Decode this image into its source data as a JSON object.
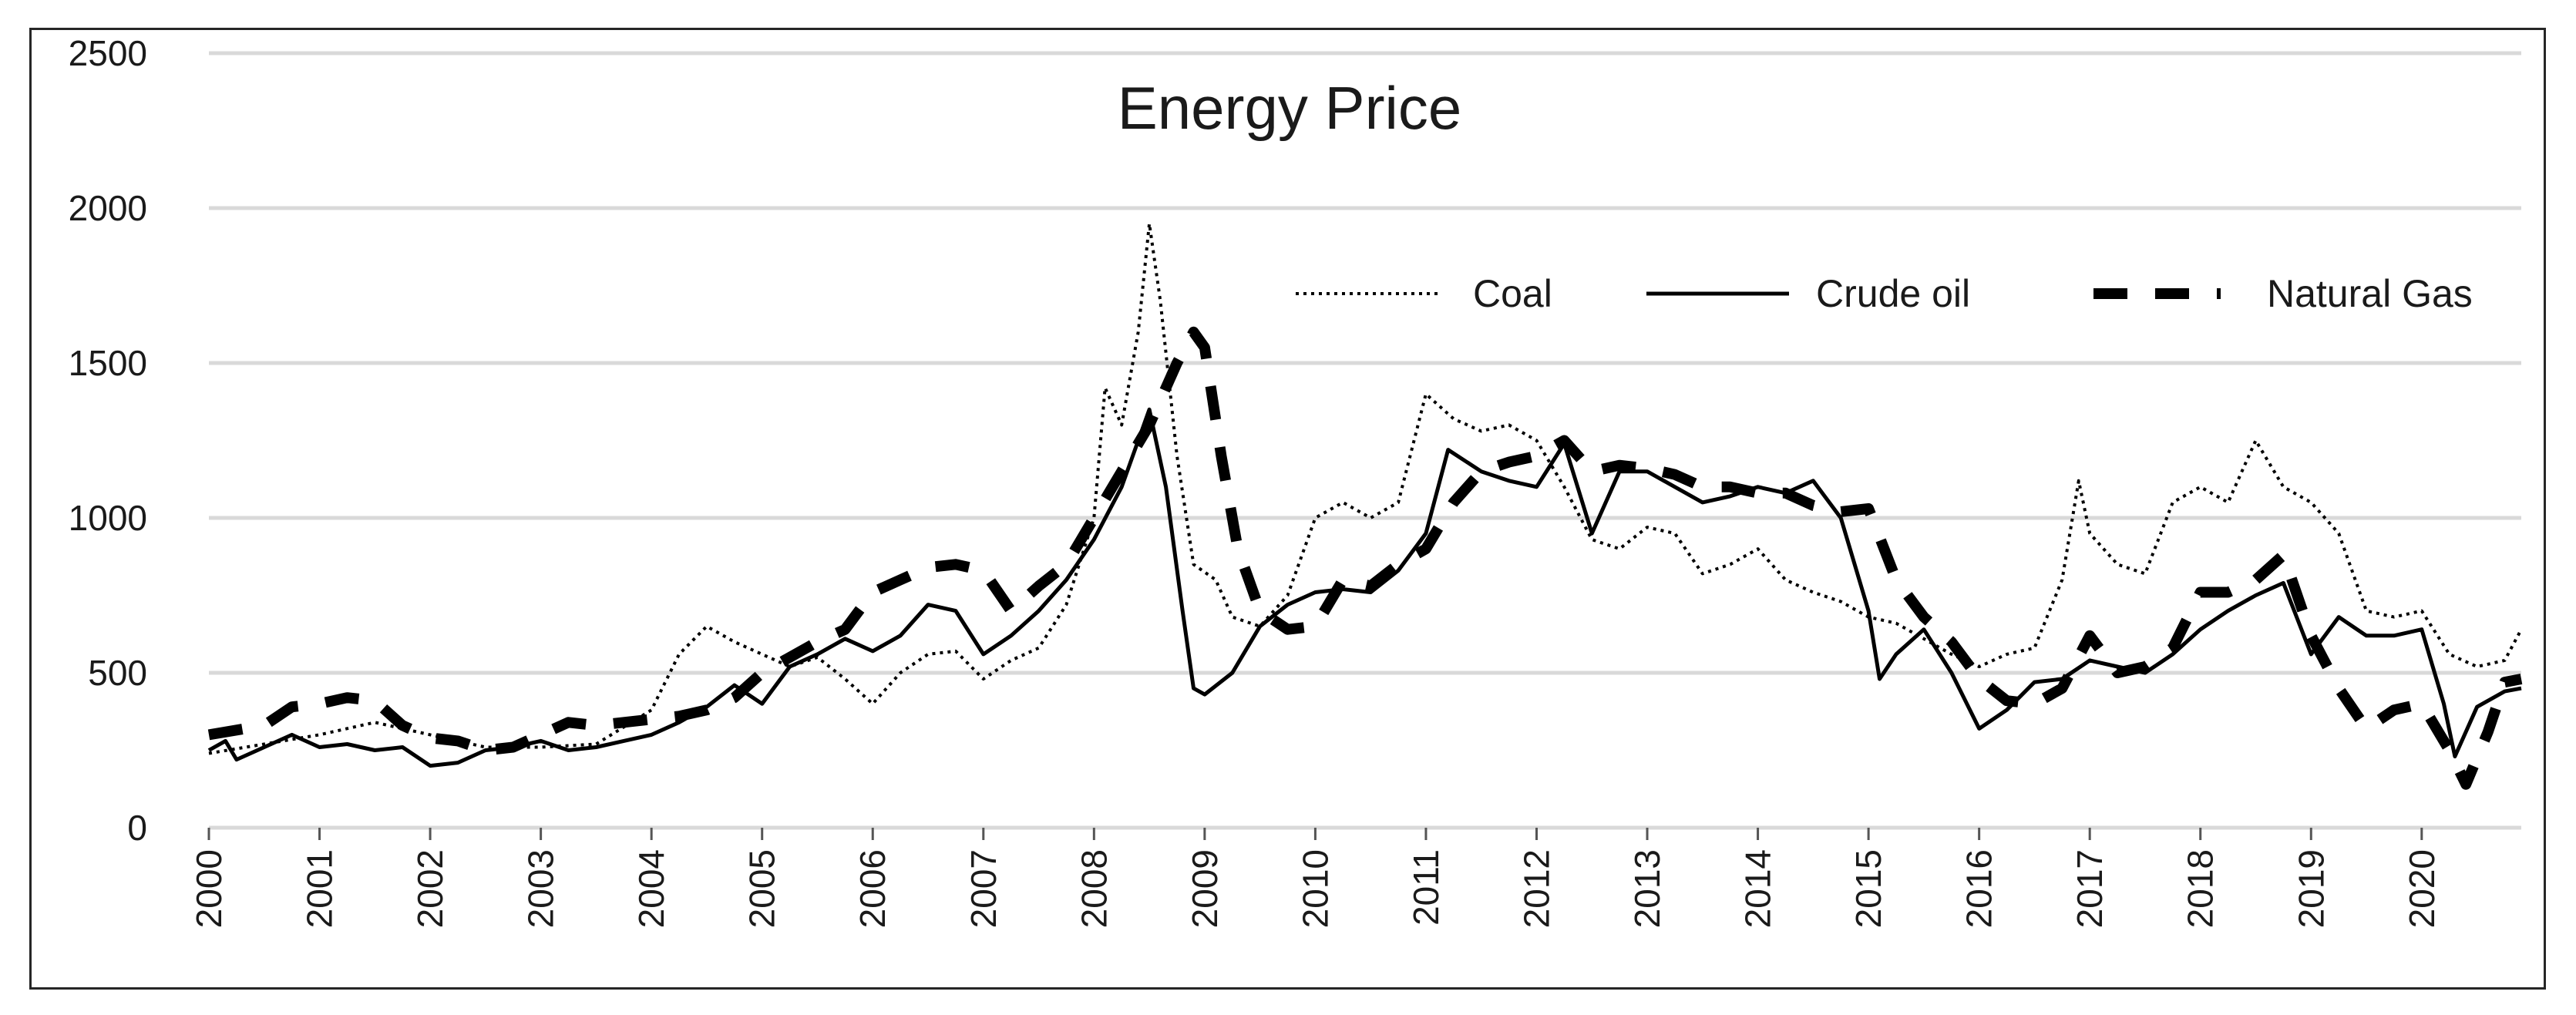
{
  "chart_data": {
    "type": "line",
    "title": "Energy Price",
    "xlabel": "",
    "ylabel": "",
    "ylim": [
      0,
      2500
    ],
    "yticks": [
      0,
      500,
      1000,
      1500,
      2000,
      2500
    ],
    "xlim": [
      2000,
      2020.9
    ],
    "xticks": [
      "2000",
      "2001",
      "2002",
      "2003",
      "2004",
      "2005",
      "2006",
      "2007",
      "2008",
      "2009",
      "2010",
      "2011",
      "2012",
      "2013",
      "2014",
      "2015",
      "2016",
      "2017",
      "2018",
      "2019",
      "2020"
    ],
    "grid": true,
    "legend_position": "top-right",
    "colors": {
      "line": "#000000",
      "grid": "#d9d9d9",
      "text": "#1a1a1a"
    },
    "series": [
      {
        "name": "Coal",
        "style": "dotted",
        "points": [
          [
            2000,
            240
          ],
          [
            2000.5,
            270
          ],
          [
            2001,
            300
          ],
          [
            2001.5,
            340
          ],
          [
            2002,
            300
          ],
          [
            2002.5,
            260
          ],
          [
            2003,
            260
          ],
          [
            2003.5,
            270
          ],
          [
            2004,
            380
          ],
          [
            2004.25,
            560
          ],
          [
            2004.5,
            650
          ],
          [
            2004.75,
            600
          ],
          [
            2005,
            560
          ],
          [
            2005.25,
            520
          ],
          [
            2005.5,
            550
          ],
          [
            2005.75,
            480
          ],
          [
            2006,
            400
          ],
          [
            2006.25,
            500
          ],
          [
            2006.5,
            560
          ],
          [
            2006.75,
            570
          ],
          [
            2007,
            480
          ],
          [
            2007.25,
            540
          ],
          [
            2007.5,
            580
          ],
          [
            2007.75,
            720
          ],
          [
            2008,
            1000
          ],
          [
            2008.1,
            1420
          ],
          [
            2008.25,
            1300
          ],
          [
            2008.4,
            1600
          ],
          [
            2008.5,
            1950
          ],
          [
            2008.6,
            1700
          ],
          [
            2008.75,
            1200
          ],
          [
            2008.9,
            850
          ],
          [
            2009.1,
            800
          ],
          [
            2009.25,
            680
          ],
          [
            2009.5,
            650
          ],
          [
            2009.75,
            750
          ],
          [
            2010,
            1000
          ],
          [
            2010.25,
            1050
          ],
          [
            2010.5,
            1000
          ],
          [
            2010.75,
            1050
          ],
          [
            2011,
            1400
          ],
          [
            2011.25,
            1320
          ],
          [
            2011.5,
            1280
          ],
          [
            2011.75,
            1300
          ],
          [
            2012,
            1250
          ],
          [
            2012.25,
            1100
          ],
          [
            2012.5,
            930
          ],
          [
            2012.75,
            900
          ],
          [
            2013,
            970
          ],
          [
            2013.25,
            950
          ],
          [
            2013.5,
            820
          ],
          [
            2013.75,
            850
          ],
          [
            2014,
            900
          ],
          [
            2014.25,
            800
          ],
          [
            2014.5,
            760
          ],
          [
            2014.75,
            730
          ],
          [
            2015,
            680
          ],
          [
            2015.25,
            660
          ],
          [
            2015.5,
            610
          ],
          [
            2015.75,
            560
          ],
          [
            2016,
            520
          ],
          [
            2016.25,
            560
          ],
          [
            2016.5,
            580
          ],
          [
            2016.75,
            800
          ],
          [
            2016.9,
            1120
          ],
          [
            2017,
            950
          ],
          [
            2017.25,
            850
          ],
          [
            2017.5,
            820
          ],
          [
            2017.75,
            1050
          ],
          [
            2018,
            1100
          ],
          [
            2018.25,
            1050
          ],
          [
            2018.5,
            1250
          ],
          [
            2018.75,
            1100
          ],
          [
            2019,
            1050
          ],
          [
            2019.25,
            950
          ],
          [
            2019.5,
            700
          ],
          [
            2019.75,
            680
          ],
          [
            2020,
            700
          ],
          [
            2020.25,
            560
          ],
          [
            2020.5,
            520
          ],
          [
            2020.75,
            540
          ],
          [
            2020.9,
            640
          ]
        ]
      },
      {
        "name": "Crude oil",
        "style": "solid",
        "points": [
          [
            2000,
            250
          ],
          [
            2000.15,
            280
          ],
          [
            2000.25,
            220
          ],
          [
            2000.5,
            260
          ],
          [
            2000.75,
            300
          ],
          [
            2001,
            260
          ],
          [
            2001.25,
            270
          ],
          [
            2001.5,
            250
          ],
          [
            2001.75,
            260
          ],
          [
            2002,
            200
          ],
          [
            2002.25,
            210
          ],
          [
            2002.5,
            250
          ],
          [
            2002.75,
            260
          ],
          [
            2003,
            280
          ],
          [
            2003.25,
            250
          ],
          [
            2003.5,
            260
          ],
          [
            2003.75,
            280
          ],
          [
            2004,
            300
          ],
          [
            2004.25,
            340
          ],
          [
            2004.5,
            390
          ],
          [
            2004.75,
            460
          ],
          [
            2005,
            400
          ],
          [
            2005.25,
            520
          ],
          [
            2005.5,
            560
          ],
          [
            2005.75,
            610
          ],
          [
            2006,
            570
          ],
          [
            2006.25,
            620
          ],
          [
            2006.5,
            720
          ],
          [
            2006.75,
            700
          ],
          [
            2007,
            560
          ],
          [
            2007.25,
            620
          ],
          [
            2007.5,
            700
          ],
          [
            2007.75,
            800
          ],
          [
            2008,
            930
          ],
          [
            2008.25,
            1100
          ],
          [
            2008.5,
            1350
          ],
          [
            2008.65,
            1100
          ],
          [
            2008.8,
            700
          ],
          [
            2008.9,
            450
          ],
          [
            2009,
            430
          ],
          [
            2009.25,
            500
          ],
          [
            2009.5,
            650
          ],
          [
            2009.75,
            720
          ],
          [
            2010,
            760
          ],
          [
            2010.25,
            770
          ],
          [
            2010.5,
            760
          ],
          [
            2010.75,
            830
          ],
          [
            2011,
            950
          ],
          [
            2011.2,
            1220
          ],
          [
            2011.5,
            1150
          ],
          [
            2011.75,
            1120
          ],
          [
            2012,
            1100
          ],
          [
            2012.25,
            1240
          ],
          [
            2012.5,
            950
          ],
          [
            2012.75,
            1150
          ],
          [
            2013,
            1150
          ],
          [
            2013.25,
            1100
          ],
          [
            2013.5,
            1050
          ],
          [
            2013.75,
            1070
          ],
          [
            2014,
            1100
          ],
          [
            2014.25,
            1080
          ],
          [
            2014.5,
            1120
          ],
          [
            2014.75,
            1000
          ],
          [
            2015,
            700
          ],
          [
            2015.1,
            480
          ],
          [
            2015.25,
            560
          ],
          [
            2015.5,
            640
          ],
          [
            2015.75,
            500
          ],
          [
            2016,
            320
          ],
          [
            2016.25,
            380
          ],
          [
            2016.5,
            470
          ],
          [
            2016.75,
            480
          ],
          [
            2017,
            540
          ],
          [
            2017.25,
            520
          ],
          [
            2017.5,
            500
          ],
          [
            2017.75,
            560
          ],
          [
            2018,
            640
          ],
          [
            2018.25,
            700
          ],
          [
            2018.5,
            750
          ],
          [
            2018.75,
            790
          ],
          [
            2019,
            560
          ],
          [
            2019.25,
            680
          ],
          [
            2019.5,
            620
          ],
          [
            2019.75,
            620
          ],
          [
            2020,
            640
          ],
          [
            2020.2,
            400
          ],
          [
            2020.3,
            230
          ],
          [
            2020.5,
            390
          ],
          [
            2020.75,
            440
          ],
          [
            2020.9,
            450
          ]
        ]
      },
      {
        "name": "Natural Gas",
        "style": "dashed",
        "points": [
          [
            2000,
            300
          ],
          [
            2000.5,
            330
          ],
          [
            2000.75,
            390
          ],
          [
            2001,
            400
          ],
          [
            2001.25,
            420
          ],
          [
            2001.5,
            410
          ],
          [
            2001.75,
            330
          ],
          [
            2002,
            290
          ],
          [
            2002.25,
            280
          ],
          [
            2002.5,
            250
          ],
          [
            2002.75,
            260
          ],
          [
            2003,
            300
          ],
          [
            2003.25,
            340
          ],
          [
            2003.5,
            330
          ],
          [
            2003.75,
            340
          ],
          [
            2004,
            350
          ],
          [
            2004.25,
            360
          ],
          [
            2004.5,
            380
          ],
          [
            2004.75,
            420
          ],
          [
            2005,
            500
          ],
          [
            2005.5,
            600
          ],
          [
            2005.75,
            640
          ],
          [
            2006,
            760
          ],
          [
            2006.25,
            800
          ],
          [
            2006.5,
            840
          ],
          [
            2006.75,
            850
          ],
          [
            2007,
            830
          ],
          [
            2007.25,
            700
          ],
          [
            2007.5,
            780
          ],
          [
            2007.75,
            850
          ],
          [
            2008,
            1000
          ],
          [
            2008.25,
            1150
          ],
          [
            2008.5,
            1300
          ],
          [
            2008.75,
            1500
          ],
          [
            2008.9,
            1600
          ],
          [
            2009,
            1550
          ],
          [
            2009.15,
            1200
          ],
          [
            2009.3,
            900
          ],
          [
            2009.5,
            700
          ],
          [
            2009.75,
            640
          ],
          [
            2010,
            650
          ],
          [
            2010.25,
            800
          ],
          [
            2010.5,
            780
          ],
          [
            2010.75,
            850
          ],
          [
            2011,
            900
          ],
          [
            2011.25,
            1050
          ],
          [
            2011.5,
            1150
          ],
          [
            2011.75,
            1180
          ],
          [
            2012,
            1200
          ],
          [
            2012.25,
            1250
          ],
          [
            2012.5,
            1150
          ],
          [
            2012.75,
            1170
          ],
          [
            2013,
            1160
          ],
          [
            2013.25,
            1140
          ],
          [
            2013.5,
            1100
          ],
          [
            2013.75,
            1100
          ],
          [
            2014,
            1080
          ],
          [
            2014.25,
            1080
          ],
          [
            2014.5,
            1040
          ],
          [
            2014.75,
            1020
          ],
          [
            2015,
            1030
          ],
          [
            2015.25,
            800
          ],
          [
            2015.5,
            680
          ],
          [
            2015.75,
            600
          ],
          [
            2016,
            480
          ],
          [
            2016.25,
            410
          ],
          [
            2016.5,
            400
          ],
          [
            2016.75,
            450
          ],
          [
            2017,
            620
          ],
          [
            2017.25,
            500
          ],
          [
            2017.5,
            520
          ],
          [
            2017.75,
            580
          ],
          [
            2018,
            760
          ],
          [
            2018.25,
            760
          ],
          [
            2018.5,
            800
          ],
          [
            2018.75,
            880
          ],
          [
            2019,
            620
          ],
          [
            2019.25,
            450
          ],
          [
            2019.5,
            320
          ],
          [
            2019.75,
            380
          ],
          [
            2020,
            400
          ],
          [
            2020.25,
            250
          ],
          [
            2020.4,
            140
          ],
          [
            2020.6,
            310
          ],
          [
            2020.75,
            470
          ],
          [
            2020.9,
            480
          ]
        ]
      }
    ]
  }
}
